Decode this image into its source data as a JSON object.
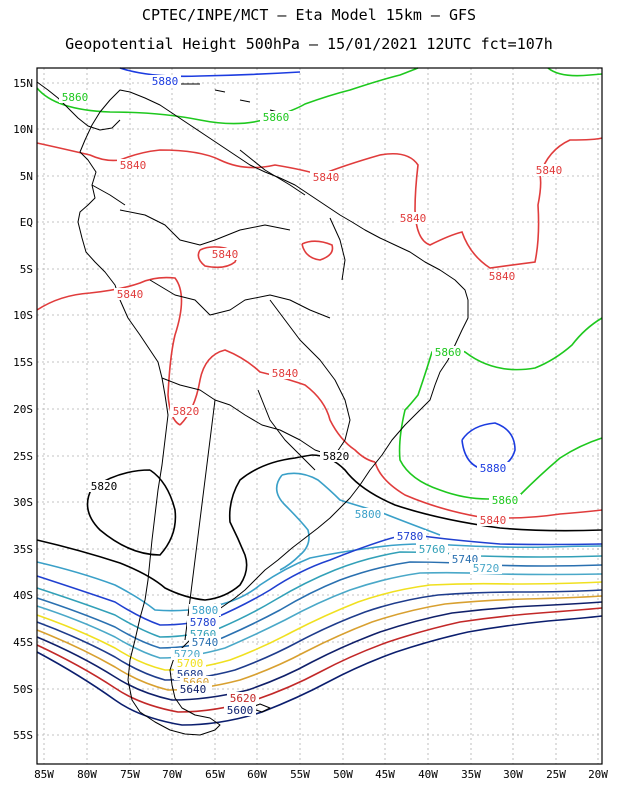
{
  "header": {
    "line1": "CPTEC/INPE/MCT –  Eta Model 15km – GFS",
    "line2": "Geopotential Height 500hPa – 15/01/2021 12UTC fct=107h"
  },
  "axes": {
    "lat_ticks": [
      "15N",
      "10N",
      "5N",
      "EQ",
      "5S",
      "10S",
      "15S",
      "20S",
      "25S",
      "30S",
      "35S",
      "40S",
      "45S",
      "50S",
      "55S"
    ],
    "lon_ticks": [
      "85W",
      "80W",
      "75W",
      "70W",
      "65W",
      "60W",
      "55W",
      "50W",
      "45W",
      "40W",
      "35W",
      "30W",
      "25W",
      "20W"
    ]
  },
  "colors": {
    "c5600": "#0b1e6e",
    "c5620": "#c22828",
    "c5640": "#10206a",
    "c5660": "#d8a030",
    "c5680": "#1e3c8c",
    "c5700": "#f0e020",
    "c5720": "#4aa8c8",
    "c5740": "#2a70b0",
    "c5760": "#32a0b8",
    "c5780": "#2040d0",
    "c5800": "#3aa0c8",
    "c5820": "#000000",
    "c5840": "#e03c3c",
    "c5860": "#1ec81e",
    "c5880": "#1c3ce0",
    "coast": "#000000"
  },
  "contour_labels": [
    {
      "id": "n5880",
      "text": "5880"
    },
    {
      "id": "n5860a",
      "text": "5860"
    },
    {
      "id": "n5860b",
      "text": "5860"
    },
    {
      "id": "n5840a",
      "text": "5840"
    },
    {
      "id": "n5840b",
      "text": "5840"
    },
    {
      "id": "n5840c",
      "text": "5840"
    },
    {
      "id": "n5840d",
      "text": "5840"
    },
    {
      "id": "n5840e",
      "text": "5840"
    },
    {
      "id": "n5840f",
      "text": "5840"
    },
    {
      "id": "n5840g",
      "text": "5840"
    },
    {
      "id": "n5840h",
      "text": "5840"
    },
    {
      "id": "n5860c",
      "text": "5860"
    },
    {
      "id": "s5880",
      "text": "5880"
    },
    {
      "id": "s5860",
      "text": "5860"
    },
    {
      "id": "s5840",
      "text": "5840"
    },
    {
      "id": "s5820a",
      "text": "5820"
    },
    {
      "id": "s5820b",
      "text": "5820"
    },
    {
      "id": "s5820c",
      "text": "5820"
    },
    {
      "id": "s5800a",
      "text": "5800"
    },
    {
      "id": "s5800b",
      "text": "5800"
    },
    {
      "id": "s5780a",
      "text": "5780"
    },
    {
      "id": "s5780b",
      "text": "5780"
    },
    {
      "id": "s5760a",
      "text": "5760"
    },
    {
      "id": "s5760b",
      "text": "5760"
    },
    {
      "id": "s5740a",
      "text": "5740"
    },
    {
      "id": "s5740b",
      "text": "5740"
    },
    {
      "id": "s5720a",
      "text": "5720"
    },
    {
      "id": "s5720b",
      "text": "5720"
    },
    {
      "id": "s5700",
      "text": "5700"
    },
    {
      "id": "s5680",
      "text": "5680"
    },
    {
      "id": "s5660",
      "text": "5660"
    },
    {
      "id": "s5640",
      "text": "5640"
    },
    {
      "id": "s5620",
      "text": "5620"
    },
    {
      "id": "s5600",
      "text": "5600"
    }
  ]
}
